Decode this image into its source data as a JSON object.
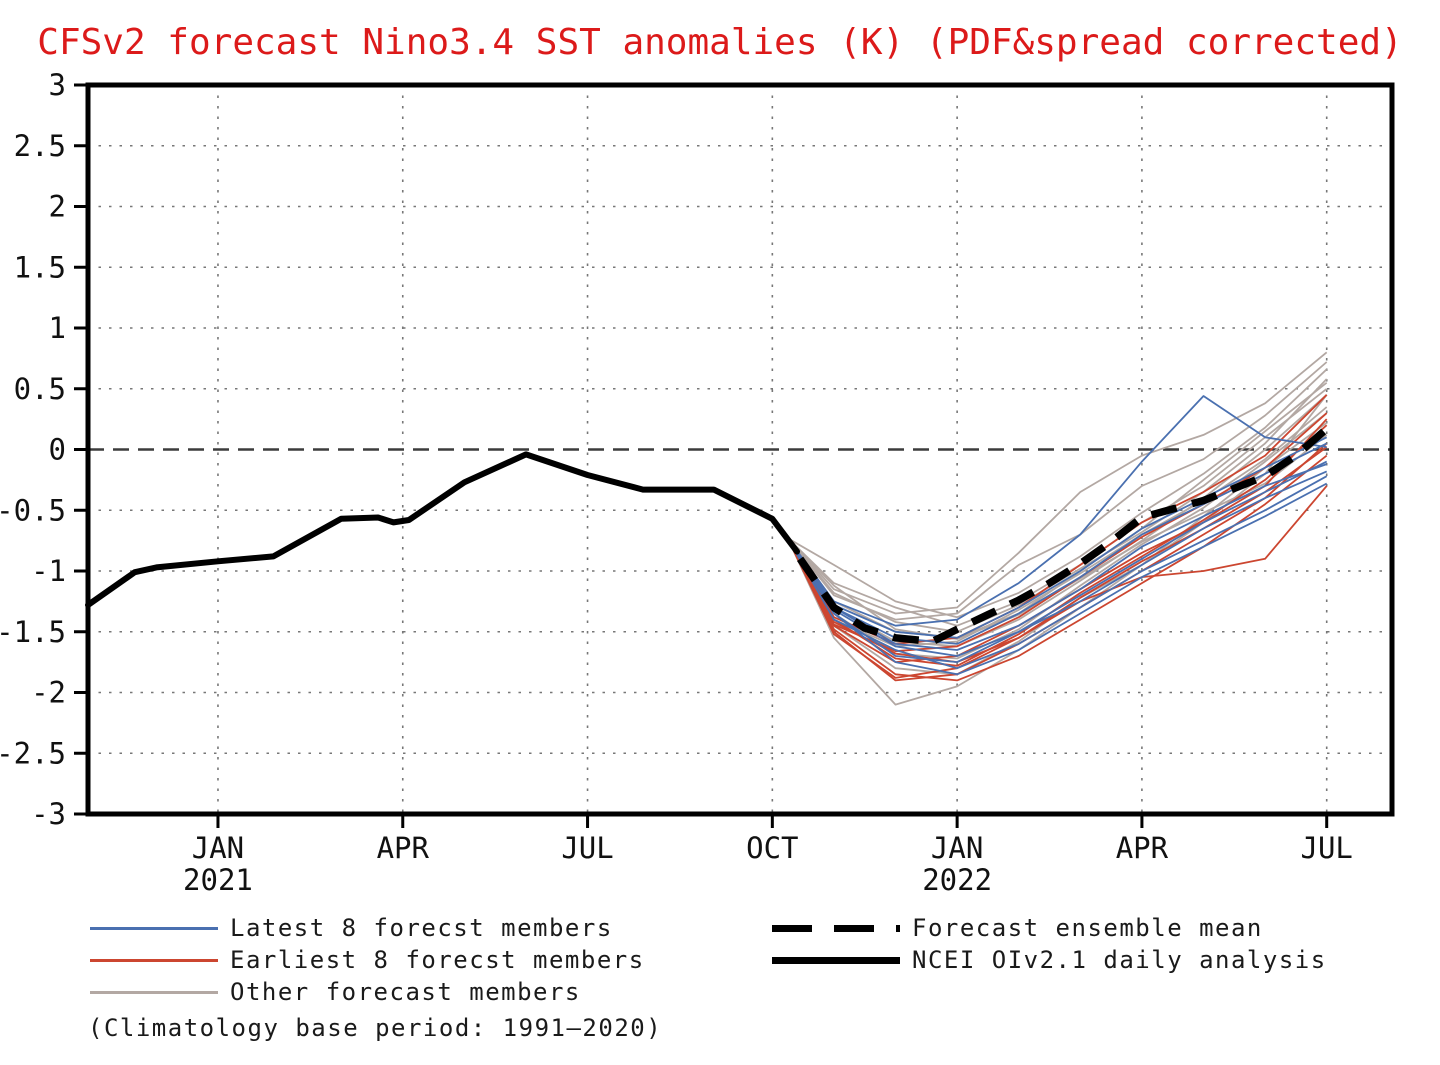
{
  "title": "CFSv2 forecast Nino3.4 SST anomalies (K) (PDF&spread corrected)",
  "title_color": "#dc1a1a",
  "colors": {
    "latest_members": "#4a70b0",
    "earliest_members": "#cc4630",
    "other_members": "#b3a8a3",
    "mean_and_observed": "#000000",
    "gridline": "#777777",
    "zero_line": "#3c3c3c"
  },
  "legend": {
    "left": [
      {
        "label": "Latest 8 forecst members",
        "color": "#4a70b0",
        "thickness": 3,
        "dashed": false
      },
      {
        "label": "Earliest 8 forecst members",
        "color": "#cc4630",
        "thickness": 3,
        "dashed": false
      },
      {
        "label": "Other forecast members",
        "color": "#b3a8a3",
        "thickness": 3,
        "dashed": false
      }
    ],
    "right": [
      {
        "label": "Forecast ensemble mean",
        "color": "#000000",
        "thickness": 7,
        "dashed": true
      },
      {
        "label": "NCEI OIv2.1 daily analysis",
        "color": "#000000",
        "thickness": 7,
        "dashed": false
      }
    ],
    "note": "(Climatology base period: 1991—2020)"
  },
  "chart_data": {
    "type": "line",
    "title": "CFSv2 forecast Nino3.4 SST anomalies (K) (PDF&spread corrected)",
    "x_unit": "months, 0 = JAN 2021",
    "x_domain": [
      -2.11,
      19.06
    ],
    "y_domain": [
      -3,
      3
    ],
    "grid": "dotted gridlines every 0.5 K and at labeled months; dashed line at 0",
    "legend_position": "below plot, two columns",
    "x_ticks": [
      {
        "t": 0,
        "label": "JAN",
        "year": "2021"
      },
      {
        "t": 3,
        "label": "APR"
      },
      {
        "t": 6,
        "label": "JUL"
      },
      {
        "t": 9,
        "label": "OCT"
      },
      {
        "t": 12,
        "label": "JAN",
        "year": "2022"
      },
      {
        "t": 15,
        "label": "APR"
      },
      {
        "t": 18,
        "label": "JUL"
      }
    ],
    "y_ticks": [
      {
        "v": 3,
        "label": "3"
      },
      {
        "v": 2.5,
        "label": "2.5"
      },
      {
        "v": 2,
        "label": "2"
      },
      {
        "v": 1.5,
        "label": "1.5"
      },
      {
        "v": 1,
        "label": "1"
      },
      {
        "v": 0.5,
        "label": "0.5"
      },
      {
        "v": 0,
        "label": "0"
      },
      {
        "v": -0.5,
        "label": "-0.5"
      },
      {
        "v": -1,
        "label": "-1"
      },
      {
        "v": -1.5,
        "label": "-1.5"
      },
      {
        "v": -2,
        "label": "-2"
      },
      {
        "v": -2.5,
        "label": "-2.5"
      },
      {
        "v": -3,
        "label": "-3"
      }
    ],
    "observed": {
      "name": "NCEI OIv2.1 daily analysis",
      "color": "#000000",
      "style": "solid-thick",
      "points": [
        [
          -2.11,
          -1.28
        ],
        [
          -1.35,
          -1.01
        ],
        [
          -1.0,
          -0.97
        ],
        [
          0,
          -0.92
        ],
        [
          0.9,
          -0.88
        ],
        [
          2.0,
          -0.57
        ],
        [
          2.6,
          -0.56
        ],
        [
          2.85,
          -0.6
        ],
        [
          3.1,
          -0.58
        ],
        [
          4,
          -0.27
        ],
        [
          5,
          -0.04
        ],
        [
          6,
          -0.21
        ],
        [
          6.9,
          -0.33
        ],
        [
          8.05,
          -0.33
        ],
        [
          9,
          -0.57
        ],
        [
          9.4,
          -0.84
        ]
      ]
    },
    "ensemble_mean": {
      "name": "Forecast ensemble mean",
      "color": "#000000",
      "style": "dashed-thick",
      "points": [
        [
          9.45,
          -0.9
        ],
        [
          10,
          -1.3
        ],
        [
          10.5,
          -1.47
        ],
        [
          11,
          -1.55
        ],
        [
          11.6,
          -1.58
        ],
        [
          12,
          -1.48
        ],
        [
          12.5,
          -1.36
        ],
        [
          13,
          -1.24
        ],
        [
          13.5,
          -1.1
        ],
        [
          14,
          -0.94
        ],
        [
          14.5,
          -0.76
        ],
        [
          15,
          -0.56
        ],
        [
          15.5,
          -0.49
        ],
        [
          16,
          -0.42
        ],
        [
          16.5,
          -0.32
        ],
        [
          17,
          -0.22
        ],
        [
          17.5,
          -0.05
        ],
        [
          18,
          0.17
        ]
      ]
    },
    "members": {
      "start_point": [
        9.25,
        -0.73
      ],
      "x": [
        10,
        11,
        12,
        13,
        14,
        15,
        16,
        17,
        18
      ],
      "groups": [
        {
          "name": "Latest 8 forecst members",
          "color": "#4a70b0",
          "values": [
            [
              -1.3,
              -1.55,
              -1.6,
              -1.35,
              -1.05,
              -0.7,
              -0.45,
              -0.2,
              0.05
            ],
            [
              -1.35,
              -1.7,
              -1.75,
              -1.5,
              -1.2,
              -0.9,
              -0.6,
              -0.35,
              -0.1
            ],
            [
              -1.25,
              -1.45,
              -1.4,
              -1.1,
              -0.7,
              -0.1,
              0.44,
              0.1,
              0.02
            ],
            [
              -1.4,
              -1.65,
              -1.8,
              -1.6,
              -1.3,
              -1.0,
              -0.75,
              -0.5,
              -0.22
            ],
            [
              -1.3,
              -1.6,
              -1.65,
              -1.45,
              -1.15,
              -0.8,
              -0.55,
              -0.3,
              -0.12
            ],
            [
              -1.35,
              -1.75,
              -1.85,
              -1.65,
              -1.35,
              -1.05,
              -0.8,
              -0.55,
              -0.28
            ],
            [
              -1.28,
              -1.5,
              -1.55,
              -1.3,
              -1.0,
              -0.65,
              -0.4,
              -0.15,
              0.1
            ],
            [
              -1.32,
              -1.62,
              -1.7,
              -1.5,
              -1.25,
              -0.95,
              -0.65,
              -0.4,
              -0.18
            ]
          ]
        },
        {
          "name": "Earliest 8 forecst members",
          "color": "#cc4630",
          "values": [
            [
              -1.45,
              -1.75,
              -1.7,
              -1.45,
              -1.15,
              -0.85,
              -0.6,
              -0.3,
              0.25
            ],
            [
              -1.5,
              -1.9,
              -1.85,
              -1.6,
              -1.3,
              -1.0,
              -0.7,
              -0.4,
              0.05
            ],
            [
              -1.42,
              -1.68,
              -1.75,
              -1.55,
              -1.25,
              -1.05,
              -1.0,
              -0.9,
              -0.3
            ],
            [
              -1.38,
              -1.6,
              -1.55,
              -1.3,
              -0.95,
              -0.6,
              -0.35,
              -0.05,
              0.45
            ],
            [
              -1.48,
              -1.85,
              -1.9,
              -1.7,
              -1.4,
              -1.1,
              -0.8,
              -0.45,
              -0.05
            ],
            [
              -1.4,
              -1.72,
              -1.78,
              -1.52,
              -1.18,
              -0.88,
              -0.58,
              -0.25,
              0.2
            ],
            [
              -1.52,
              -1.88,
              -1.8,
              -1.55,
              -1.22,
              -0.92,
              -0.65,
              -0.35,
              0.02
            ],
            [
              -1.44,
              -1.66,
              -1.62,
              -1.38,
              -1.05,
              -0.72,
              -0.45,
              -0.15,
              0.3
            ]
          ]
        },
        {
          "name": "Other forecast members",
          "color": "#b3a8a3",
          "values": [
            [
              -1.2,
              -1.4,
              -1.35,
              -0.95,
              -0.7,
              -0.3,
              -0.08,
              0.28,
              0.72
            ],
            [
              -1.55,
              -2.1,
              -1.95,
              -1.65,
              -1.3,
              -0.95,
              -0.6,
              -0.2,
              0.45
            ],
            [
              -1.1,
              -1.3,
              -1.45,
              -1.25,
              -0.95,
              -0.6,
              -0.3,
              0.1,
              0.5
            ],
            [
              -1.25,
              -1.5,
              -1.55,
              -1.35,
              -1.0,
              -0.65,
              -0.25,
              0.15,
              0.55
            ],
            [
              -1.15,
              -1.35,
              -1.3,
              -0.85,
              -0.35,
              -0.05,
              0.12,
              0.38,
              0.8
            ],
            [
              -1.3,
              -1.58,
              -1.62,
              -1.4,
              -1.08,
              -0.75,
              -0.4,
              0.0,
              0.45
            ],
            [
              -0.95,
              -1.25,
              -1.38,
              -1.18,
              -0.88,
              -0.52,
              -0.2,
              0.18,
              0.66
            ],
            [
              -1.35,
              -1.68,
              -1.72,
              -1.48,
              -1.12,
              -0.78,
              -0.48,
              -0.1,
              0.3
            ],
            [
              -1.45,
              -1.8,
              -1.85,
              -1.58,
              -1.22,
              -0.95,
              -0.55,
              -0.15,
              0.22
            ],
            [
              -1.18,
              -1.42,
              -1.5,
              -1.28,
              -0.98,
              -0.68,
              -0.35,
              0.05,
              0.58
            ],
            [
              -1.4,
              -1.62,
              -1.58,
              -1.32,
              -1.02,
              -0.7,
              -0.42,
              -0.08,
              0.35
            ],
            [
              -1.12,
              -1.48,
              -1.56,
              -1.36,
              -1.06,
              -0.76,
              -0.52,
              -0.28,
              0.12
            ]
          ]
        }
      ]
    }
  }
}
